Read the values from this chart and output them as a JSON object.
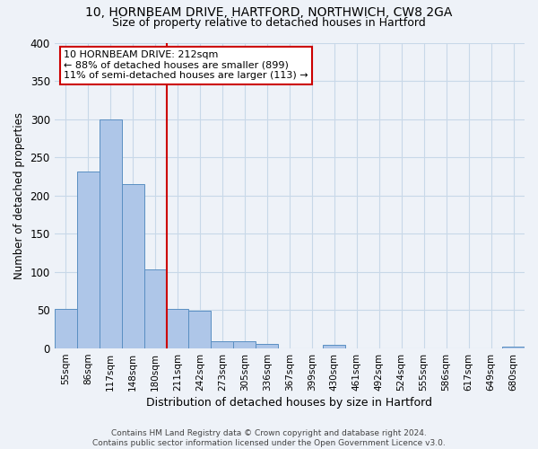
{
  "title1": "10, HORNBEAM DRIVE, HARTFORD, NORTHWICH, CW8 2GA",
  "title2": "Size of property relative to detached houses in Hartford",
  "xlabel": "Distribution of detached houses by size in Hartford",
  "ylabel": "Number of detached properties",
  "bar_labels": [
    "55sqm",
    "86sqm",
    "117sqm",
    "148sqm",
    "180sqm",
    "211sqm",
    "242sqm",
    "273sqm",
    "305sqm",
    "336sqm",
    "367sqm",
    "399sqm",
    "430sqm",
    "461sqm",
    "492sqm",
    "524sqm",
    "555sqm",
    "586sqm",
    "617sqm",
    "649sqm",
    "680sqm"
  ],
  "bar_values": [
    52,
    232,
    300,
    215,
    103,
    52,
    49,
    10,
    9,
    6,
    0,
    0,
    5,
    0,
    0,
    0,
    0,
    0,
    0,
    0,
    3
  ],
  "bar_color": "#aec6e8",
  "bar_edge_color": "#5a8fc2",
  "grid_color": "#c8d8e8",
  "background_color": "#eef2f8",
  "annotation_text_line1": "10 HORNBEAM DRIVE: 212sqm",
  "annotation_text_line2": "← 88% of detached houses are smaller (899)",
  "annotation_text_line3": "11% of semi-detached houses are larger (113) →",
  "annotation_box_color": "#ffffff",
  "annotation_box_edge": "#cc0000",
  "vline_x_index": 5,
  "footer": "Contains HM Land Registry data © Crown copyright and database right 2024.\nContains public sector information licensed under the Open Government Licence v3.0.",
  "ylim": [
    0,
    400
  ],
  "yticks": [
    0,
    50,
    100,
    150,
    200,
    250,
    300,
    350,
    400
  ]
}
